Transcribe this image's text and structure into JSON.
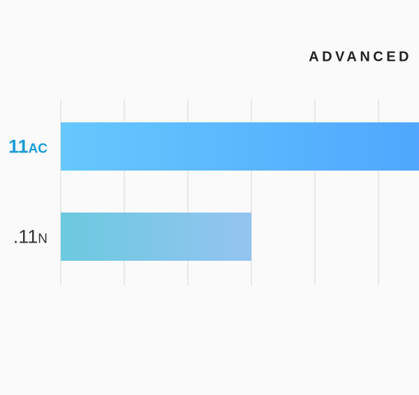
{
  "chart_data": {
    "type": "hbar",
    "title": "ADVANCED",
    "categories": [
      "11ac",
      ".11n"
    ],
    "values": [
      6,
      3
    ],
    "colors": [
      [
        "#66c8fd",
        "#4ea5fd"
      ],
      [
        "#6bc9df",
        "#94c4f1"
      ]
    ],
    "label_colors": [
      "#1a9bd7",
      "#333333"
    ],
    "xlim": [
      0,
      6
    ],
    "xticks": [
      0,
      1,
      2,
      3,
      4,
      5,
      6
    ],
    "grid": true
  }
}
